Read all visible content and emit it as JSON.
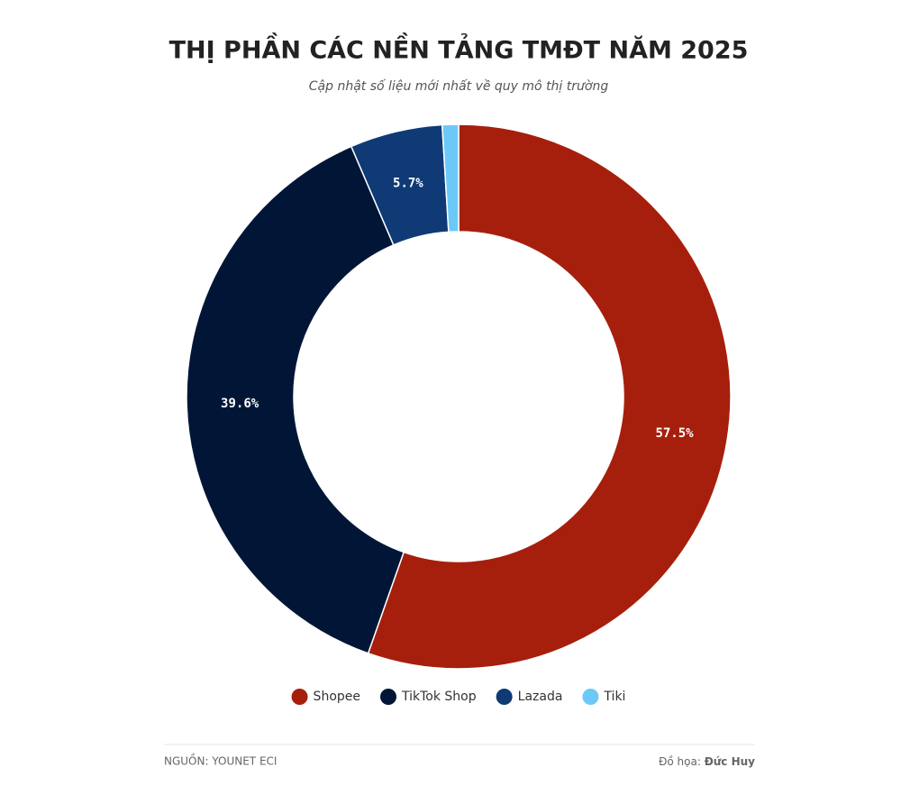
{
  "chart_data": {
    "type": "donut",
    "title": "THỊ PHẦN CÁC NỀN TẢNG TMĐT NĂM 2025",
    "subtitle": "Cập nhật số liệu mới nhất về quy mô thị trường",
    "categories": [
      "Shopee",
      "TikTok Shop",
      "Lazada",
      "Tiki"
    ],
    "values": [
      57.5,
      39.6,
      5.7,
      1.0
    ],
    "value_labels": [
      "57.5%",
      "39.6%",
      "5.7%",
      null
    ],
    "colors": [
      "#a61f0d",
      "#011636",
      "#0f3a75",
      "#6cc9f7"
    ],
    "legend": "bottom",
    "source": "NGUỒN: YOUNET ECI",
    "credit_label": "Đồ họa:",
    "credit_name": "Đức Huy"
  }
}
